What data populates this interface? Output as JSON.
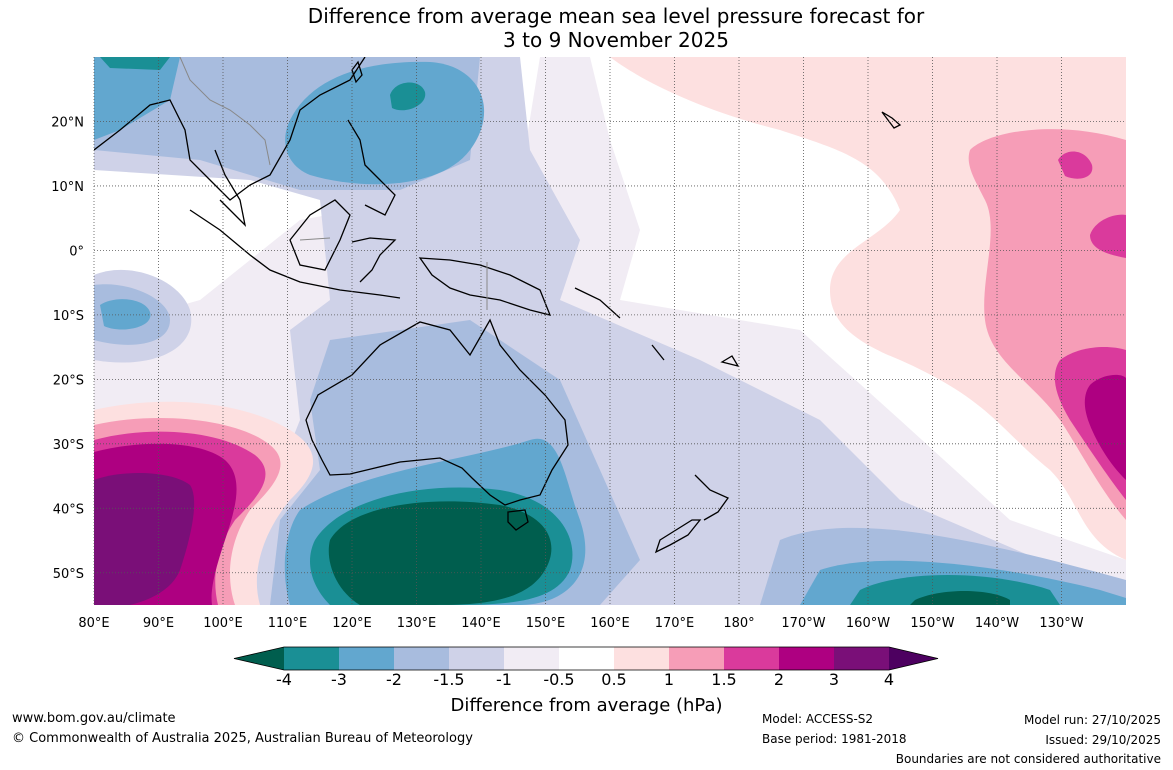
{
  "title": {
    "line1": "Difference from average mean sea level pressure forecast for",
    "line2": "3 to 9 November 2025"
  },
  "axes": {
    "lon_labels": [
      "80°E",
      "90°E",
      "100°E",
      "110°E",
      "120°E",
      "130°E",
      "140°E",
      "150°E",
      "160°E",
      "170°E",
      "180°",
      "170°W",
      "160°W",
      "150°W",
      "140°W",
      "130°W"
    ],
    "lat_labels": [
      "20°N",
      "10°N",
      "0°",
      "10°S",
      "20°S",
      "30°S",
      "40°S",
      "50°S"
    ],
    "lon_range": [
      80,
      240
    ],
    "lat_range": [
      -55,
      30
    ],
    "grid": "dotted"
  },
  "colorbar": {
    "ticks": [
      "-4",
      "-3",
      "-2",
      "-1.5",
      "-1",
      "-0.5",
      "0.5",
      "1",
      "1.5",
      "2",
      "3",
      "4"
    ],
    "colors": [
      "#005e4e",
      "#1a8f95",
      "#62a7cf",
      "#a8bcde",
      "#cfd2e8",
      "#f1ecf4",
      "#ffffff",
      "#fde0e0",
      "#f69db7",
      "#da3a9c",
      "#ae0081",
      "#7a0f78",
      "#4d0060"
    ],
    "label": "Difference from average (hPa)"
  },
  "footer": {
    "website": "www.bom.gov.au/climate",
    "copyright": "© Commonwealth of Australia 2025, Australian Bureau of Meteorology",
    "model": "Model: ACCESS-S2",
    "base_period": "Base period: 1981-2018",
    "model_run": "Model run: 27/10/2025",
    "issued": "Issued: 29/10/2025",
    "disclaimer": "Boundaries are not considered authoritative"
  }
}
